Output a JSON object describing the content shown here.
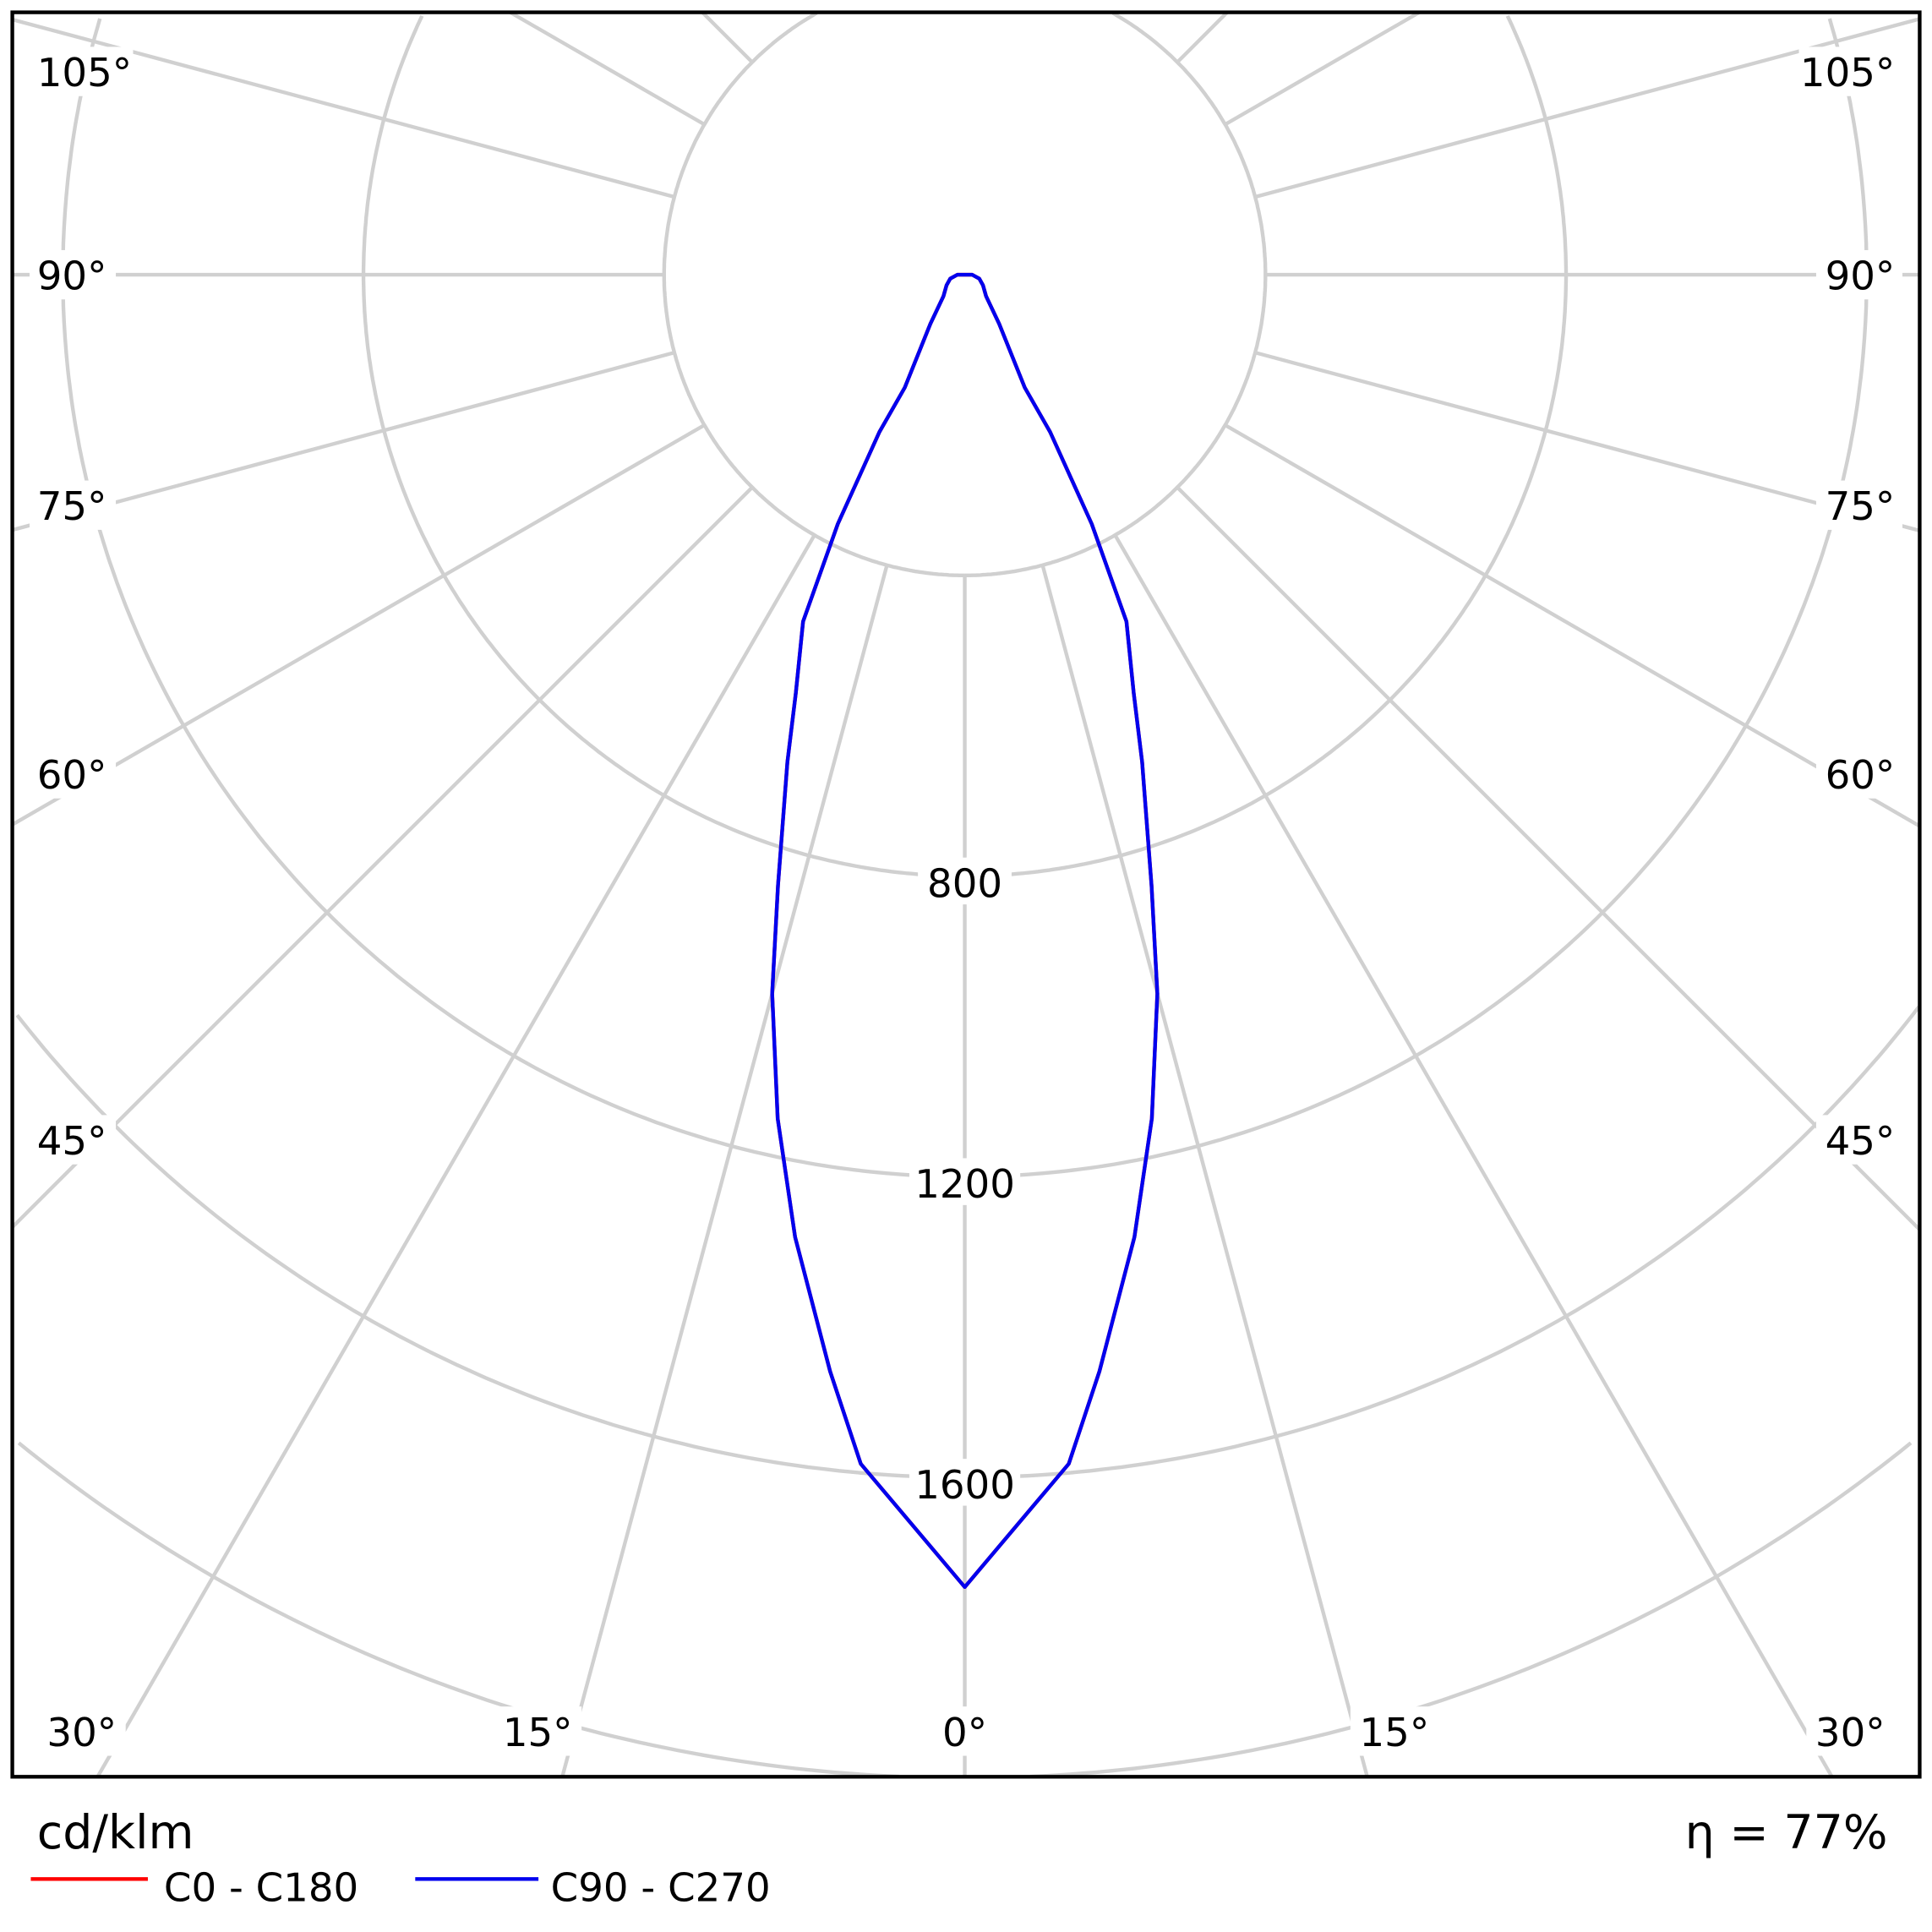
{
  "chart_data": {
    "type": "polar",
    "unit_label": "cd/klm",
    "efficiency_label": "η = 77%",
    "radial_ticks": [
      400,
      800,
      1200,
      1600,
      2000
    ],
    "radial_tick_labels": [
      "800",
      "1200",
      "1600"
    ],
    "angle_labels_left": [
      "105°",
      "90°",
      "75°",
      "60°",
      "45°",
      "30°",
      "15°"
    ],
    "angle_labels_bottom": [
      "0°"
    ],
    "angle_labels_right": [
      "105°",
      "90°",
      "75°",
      "60°",
      "45°",
      "30°",
      "15°"
    ],
    "grid": true,
    "legend_position": "bottom-left",
    "series": [
      {
        "name": "C0 - C180",
        "color": "#ff0000",
        "angles": [
          0,
          5,
          7,
          10,
          12.5,
          15,
          17,
          20,
          22,
          25,
          27,
          28.5,
          28,
          35,
          45,
          60,
          75,
          90,
          120
        ],
        "values": [
          1746,
          1588,
          1470,
          1300,
          1150,
          990,
          850,
          690,
          600,
          509,
          372,
          238,
          170,
          80,
          40,
          28,
          20,
          10,
          0
        ]
      },
      {
        "name": "C90 - C270",
        "color": "#0000ee",
        "angles": [
          0,
          5,
          7,
          10,
          12.5,
          15,
          17,
          20,
          22,
          25,
          27,
          28.5,
          28,
          35,
          45,
          60,
          75,
          90,
          120
        ],
        "values": [
          1746,
          1588,
          1470,
          1300,
          1150,
          990,
          850,
          690,
          600,
          509,
          372,
          238,
          170,
          80,
          40,
          28,
          20,
          10,
          0
        ]
      }
    ]
  }
}
